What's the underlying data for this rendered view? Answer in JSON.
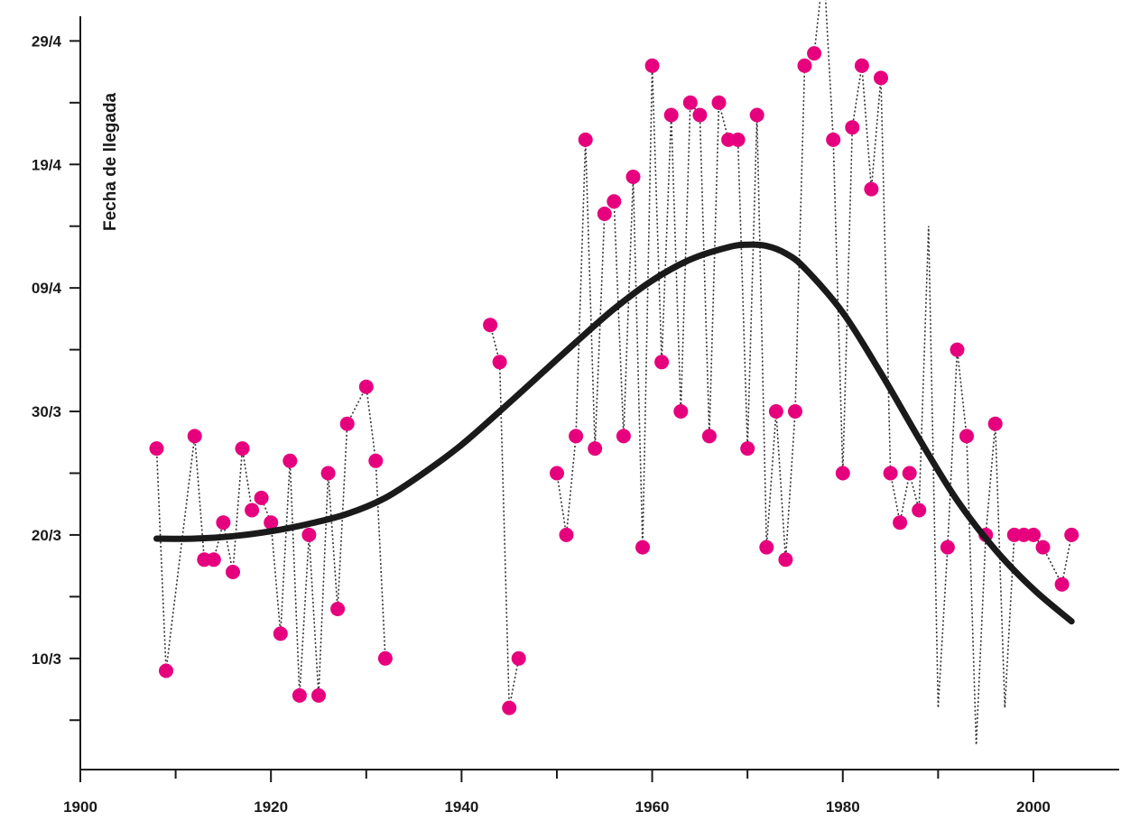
{
  "chart_data": {
    "type": "scatter",
    "title": "",
    "ylabel": "Fecha de llegada",
    "xlabel": "",
    "x_ticks": [
      1900,
      1920,
      1940,
      1960,
      1980,
      2000
    ],
    "y_ticks": [
      {
        "label": "10/3",
        "value": 10
      },
      {
        "label": "20/3",
        "value": 20
      },
      {
        "label": "30/3",
        "value": 30
      },
      {
        "label": "09/4",
        "value": 40
      },
      {
        "label": "19/4",
        "value": 50
      },
      {
        "label": "29/4",
        "value": 60
      }
    ],
    "xlim": [
      1900,
      2009
    ],
    "ylim": [
      1,
      62
    ],
    "grid": false,
    "colors": {
      "points": "#e6007e",
      "line": "#1a1a1a",
      "connector": "#333333"
    },
    "series": [
      {
        "type": "scatter",
        "x": [
          1908,
          1909,
          1912,
          1913,
          1914,
          1915,
          1916,
          1917,
          1918,
          1919,
          1920,
          1921,
          1922,
          1923,
          1924,
          1925,
          1926,
          1927,
          1928,
          1930,
          1931,
          1932,
          1943,
          1944,
          1945,
          1946,
          1950,
          1951,
          1952,
          1953,
          1954,
          1955,
          1956,
          1957,
          1958,
          1959,
          1960,
          1961,
          1962,
          1963,
          1964,
          1965,
          1966,
          1967,
          1968,
          1969,
          1970,
          1971,
          1972,
          1973,
          1974,
          1975,
          1976,
          1977,
          1978,
          1979,
          1980,
          1981,
          1982,
          1983,
          1984,
          1985,
          1986,
          1987,
          1988,
          1989,
          1990,
          1991,
          1992,
          1993,
          1994,
          1995,
          1996,
          1997,
          1998,
          1999,
          2000,
          2001,
          2003,
          2004
        ],
        "y": [
          27,
          9,
          28,
          18,
          18,
          21,
          17,
          27,
          22,
          23,
          21,
          12,
          26,
          7,
          20,
          7,
          25,
          14,
          29,
          32,
          26,
          10,
          37,
          34,
          6,
          10,
          25,
          20,
          28,
          52,
          27,
          46,
          47,
          28,
          49,
          19,
          58,
          34,
          54,
          30,
          55,
          54,
          28,
          55,
          52,
          52,
          27,
          54,
          19,
          30,
          18,
          30,
          58,
          59,
          66,
          52,
          25,
          53,
          58,
          48,
          57,
          25,
          21,
          25,
          22,
          45,
          6,
          19,
          35,
          28,
          3,
          20,
          29,
          6,
          20,
          20,
          20,
          19,
          16,
          20
        ],
        "marker": [
          true,
          true,
          true,
          true,
          true,
          true,
          true,
          true,
          true,
          true,
          true,
          true,
          true,
          true,
          true,
          true,
          true,
          true,
          true,
          true,
          true,
          true,
          true,
          true,
          true,
          true,
          true,
          true,
          true,
          true,
          true,
          true,
          true,
          true,
          true,
          true,
          true,
          true,
          true,
          true,
          true,
          true,
          true,
          true,
          true,
          true,
          true,
          true,
          true,
          true,
          true,
          true,
          true,
          true,
          true,
          true,
          true,
          true,
          true,
          true,
          true,
          true,
          true,
          true,
          true,
          false,
          false,
          true,
          true,
          true,
          false,
          true,
          true,
          false,
          true,
          true,
          true,
          true,
          true,
          true
        ]
      },
      {
        "type": "line",
        "x": [
          1908,
          1912,
          1916,
          1920,
          1924,
          1928,
          1932,
          1936,
          1940,
          1944,
          1948,
          1952,
          1956,
          1960,
          1964,
          1968,
          1970,
          1972,
          1974,
          1976,
          1980,
          1984,
          1988,
          1992,
          1996,
          2000,
          2004
        ],
        "y": [
          19.7,
          19.7,
          19.9,
          20.3,
          20.9,
          21.7,
          23.0,
          25.0,
          27.3,
          30.0,
          32.8,
          35.6,
          38.3,
          40.6,
          42.3,
          43.3,
          43.5,
          43.4,
          42.8,
          41.6,
          38.0,
          33.1,
          27.8,
          22.8,
          18.8,
          15.6,
          13.0
        ]
      }
    ]
  }
}
